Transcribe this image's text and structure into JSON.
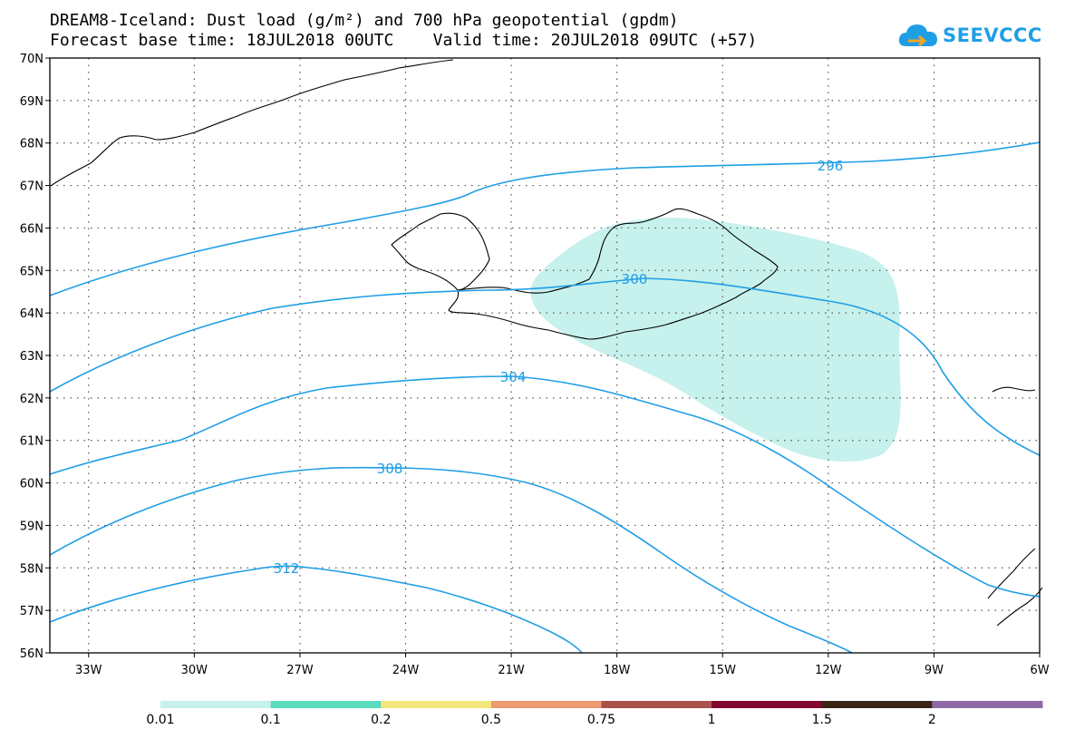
{
  "title_line1": "DREAM8-Iceland: Dust load (g/m²) and 700 hPa geopotential (gpdm)",
  "title_line2": "Forecast base time: 18JUL2018 00UTC    Valid time: 20JUL2018 09UTC (+57)",
  "logo_text": "SEEVCCC",
  "map": {
    "lat_labels": [
      "70N",
      "69N",
      "68N",
      "67N",
      "66N",
      "65N",
      "64N",
      "63N",
      "62N",
      "61N",
      "60N",
      "59N",
      "58N",
      "57N",
      "56N"
    ],
    "lon_labels": [
      "33W",
      "30W",
      "27W",
      "24W",
      "21W",
      "18W",
      "15W",
      "12W",
      "9W",
      "6W"
    ],
    "lat_range": [
      56,
      70
    ],
    "lon_range": [
      -34.1,
      -6
    ],
    "contour_color": "#1f9ee6",
    "dust_color": "#c6f1ec",
    "contours": [
      {
        "label": "296"
      },
      {
        "label": "300"
      },
      {
        "label": "304"
      },
      {
        "label": "308"
      },
      {
        "label": "312"
      }
    ]
  },
  "colorbar": {
    "labels": [
      "0.01",
      "0.1",
      "0.2",
      "0.5",
      "0.75",
      "1",
      "1.5",
      "2"
    ],
    "colors": [
      "#c6f1ec",
      "#5adcbf",
      "#f3e67c",
      "#ec9a70",
      "#a9524c",
      "#82062f",
      "#3b2616",
      "#8d6aa6"
    ]
  }
}
